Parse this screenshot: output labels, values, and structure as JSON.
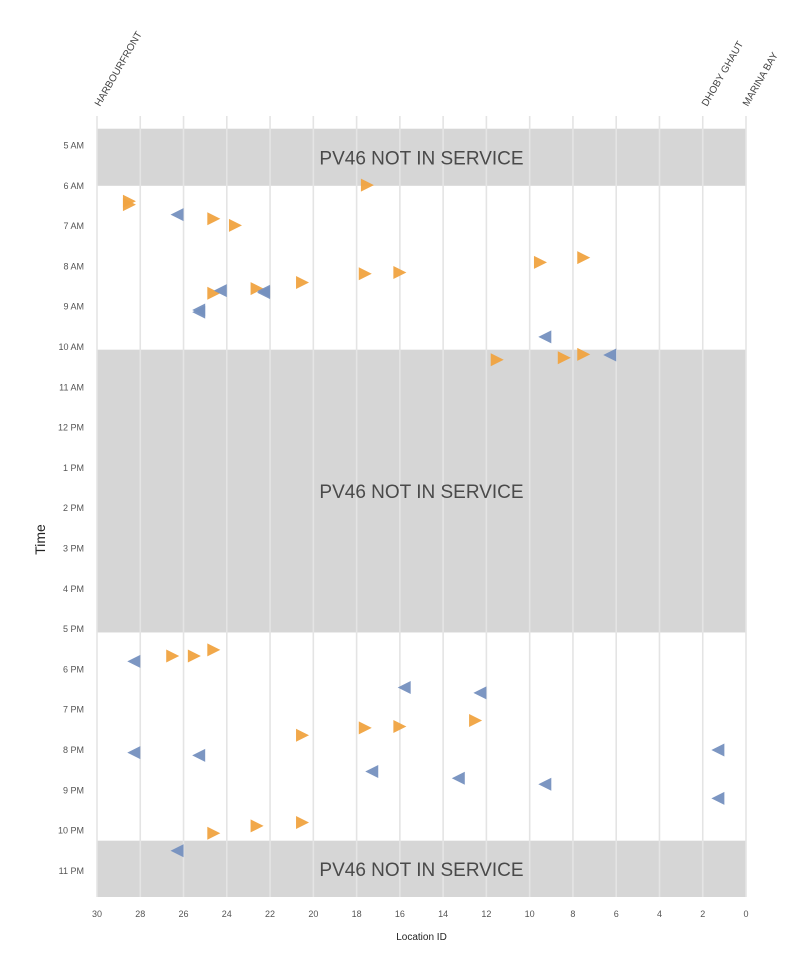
{
  "chart_data": {
    "type": "scatter",
    "xlabel": "Location ID",
    "ylabel": "Time",
    "xlim": [
      30,
      0
    ],
    "x_ticks": [
      "30",
      "28",
      "26",
      "24",
      "22",
      "20",
      "18",
      "16",
      "14",
      "12",
      "10",
      "8",
      "6",
      "4",
      "2",
      "0"
    ],
    "y_ticks": [
      "5 AM",
      "6 AM",
      "7 AM",
      "8 AM",
      "9 AM",
      "10 AM",
      "11 AM",
      "12 PM",
      "1 PM",
      "2 PM",
      "3 PM",
      "4 PM",
      "5 PM",
      "6 PM",
      "7 PM",
      "8 PM",
      "9 PM",
      "10 PM",
      "11 PM"
    ],
    "grid": true,
    "top_labels": [
      {
        "text": "HARBOURFRONT",
        "x": 29
      },
      {
        "text": "DHOBY GHAUT",
        "x": 1
      },
      {
        "text": "MARINA BAY",
        "x": 0
      }
    ],
    "not_in_service": [
      {
        "label": "PV46 NOT IN SERVICE",
        "start": "4:35",
        "end": "6:00"
      },
      {
        "label": "PV46 NOT IN SERVICE",
        "start": "10:04",
        "end": "17:05"
      },
      {
        "label": "PV46 NOT IN SERVICE",
        "start": "22:15",
        "end": "23:40"
      }
    ],
    "colors": {
      "outbound": "#f0a340",
      "inbound": "#7590bf",
      "band": "#d6d6d6",
      "grid": "#e4e4e4"
    },
    "series": [
      {
        "direction": "right",
        "color": "#f0a340",
        "points": [
          [
            28.5,
            "6:23"
          ],
          [
            28.5,
            "6:28"
          ],
          [
            17.5,
            "5:59"
          ],
          [
            24.6,
            "6:49"
          ],
          [
            23.6,
            "6:59"
          ],
          [
            7.5,
            "7:47"
          ],
          [
            9.5,
            "7:54"
          ],
          [
            16.0,
            "8:09"
          ],
          [
            17.6,
            "8:11"
          ],
          [
            20.5,
            "8:24"
          ],
          [
            22.6,
            "8:33"
          ],
          [
            24.6,
            "8:40"
          ],
          [
            11.5,
            "10:19"
          ],
          [
            8.4,
            "10:16"
          ],
          [
            7.5,
            "10:11"
          ],
          [
            26.5,
            "17:40"
          ],
          [
            25.5,
            "17:40"
          ],
          [
            24.6,
            "17:31"
          ],
          [
            12.5,
            "19:16"
          ],
          [
            16.0,
            "19:25"
          ],
          [
            17.6,
            "19:27"
          ],
          [
            20.5,
            "19:38"
          ],
          [
            20.5,
            "21:48"
          ],
          [
            22.6,
            "21:53"
          ],
          [
            24.6,
            "22:04"
          ]
        ]
      },
      {
        "direction": "left",
        "color": "#7590bf",
        "points": [
          [
            26.3,
            "6:43"
          ],
          [
            24.3,
            "8:36"
          ],
          [
            22.3,
            "8:37"
          ],
          [
            22.3,
            "8:39"
          ],
          [
            25.3,
            "9:05"
          ],
          [
            25.3,
            "9:08"
          ],
          [
            9.3,
            "9:45"
          ],
          [
            6.3,
            "10:12"
          ],
          [
            28.3,
            "17:48"
          ],
          [
            15.8,
            "18:27"
          ],
          [
            12.3,
            "18:35"
          ],
          [
            28.3,
            "20:04"
          ],
          [
            25.3,
            "20:08"
          ],
          [
            1.3,
            "20:00"
          ],
          [
            17.3,
            "20:32"
          ],
          [
            13.3,
            "20:42"
          ],
          [
            9.3,
            "20:51"
          ],
          [
            1.3,
            "21:12"
          ],
          [
            26.3,
            "22:30"
          ]
        ]
      }
    ]
  }
}
